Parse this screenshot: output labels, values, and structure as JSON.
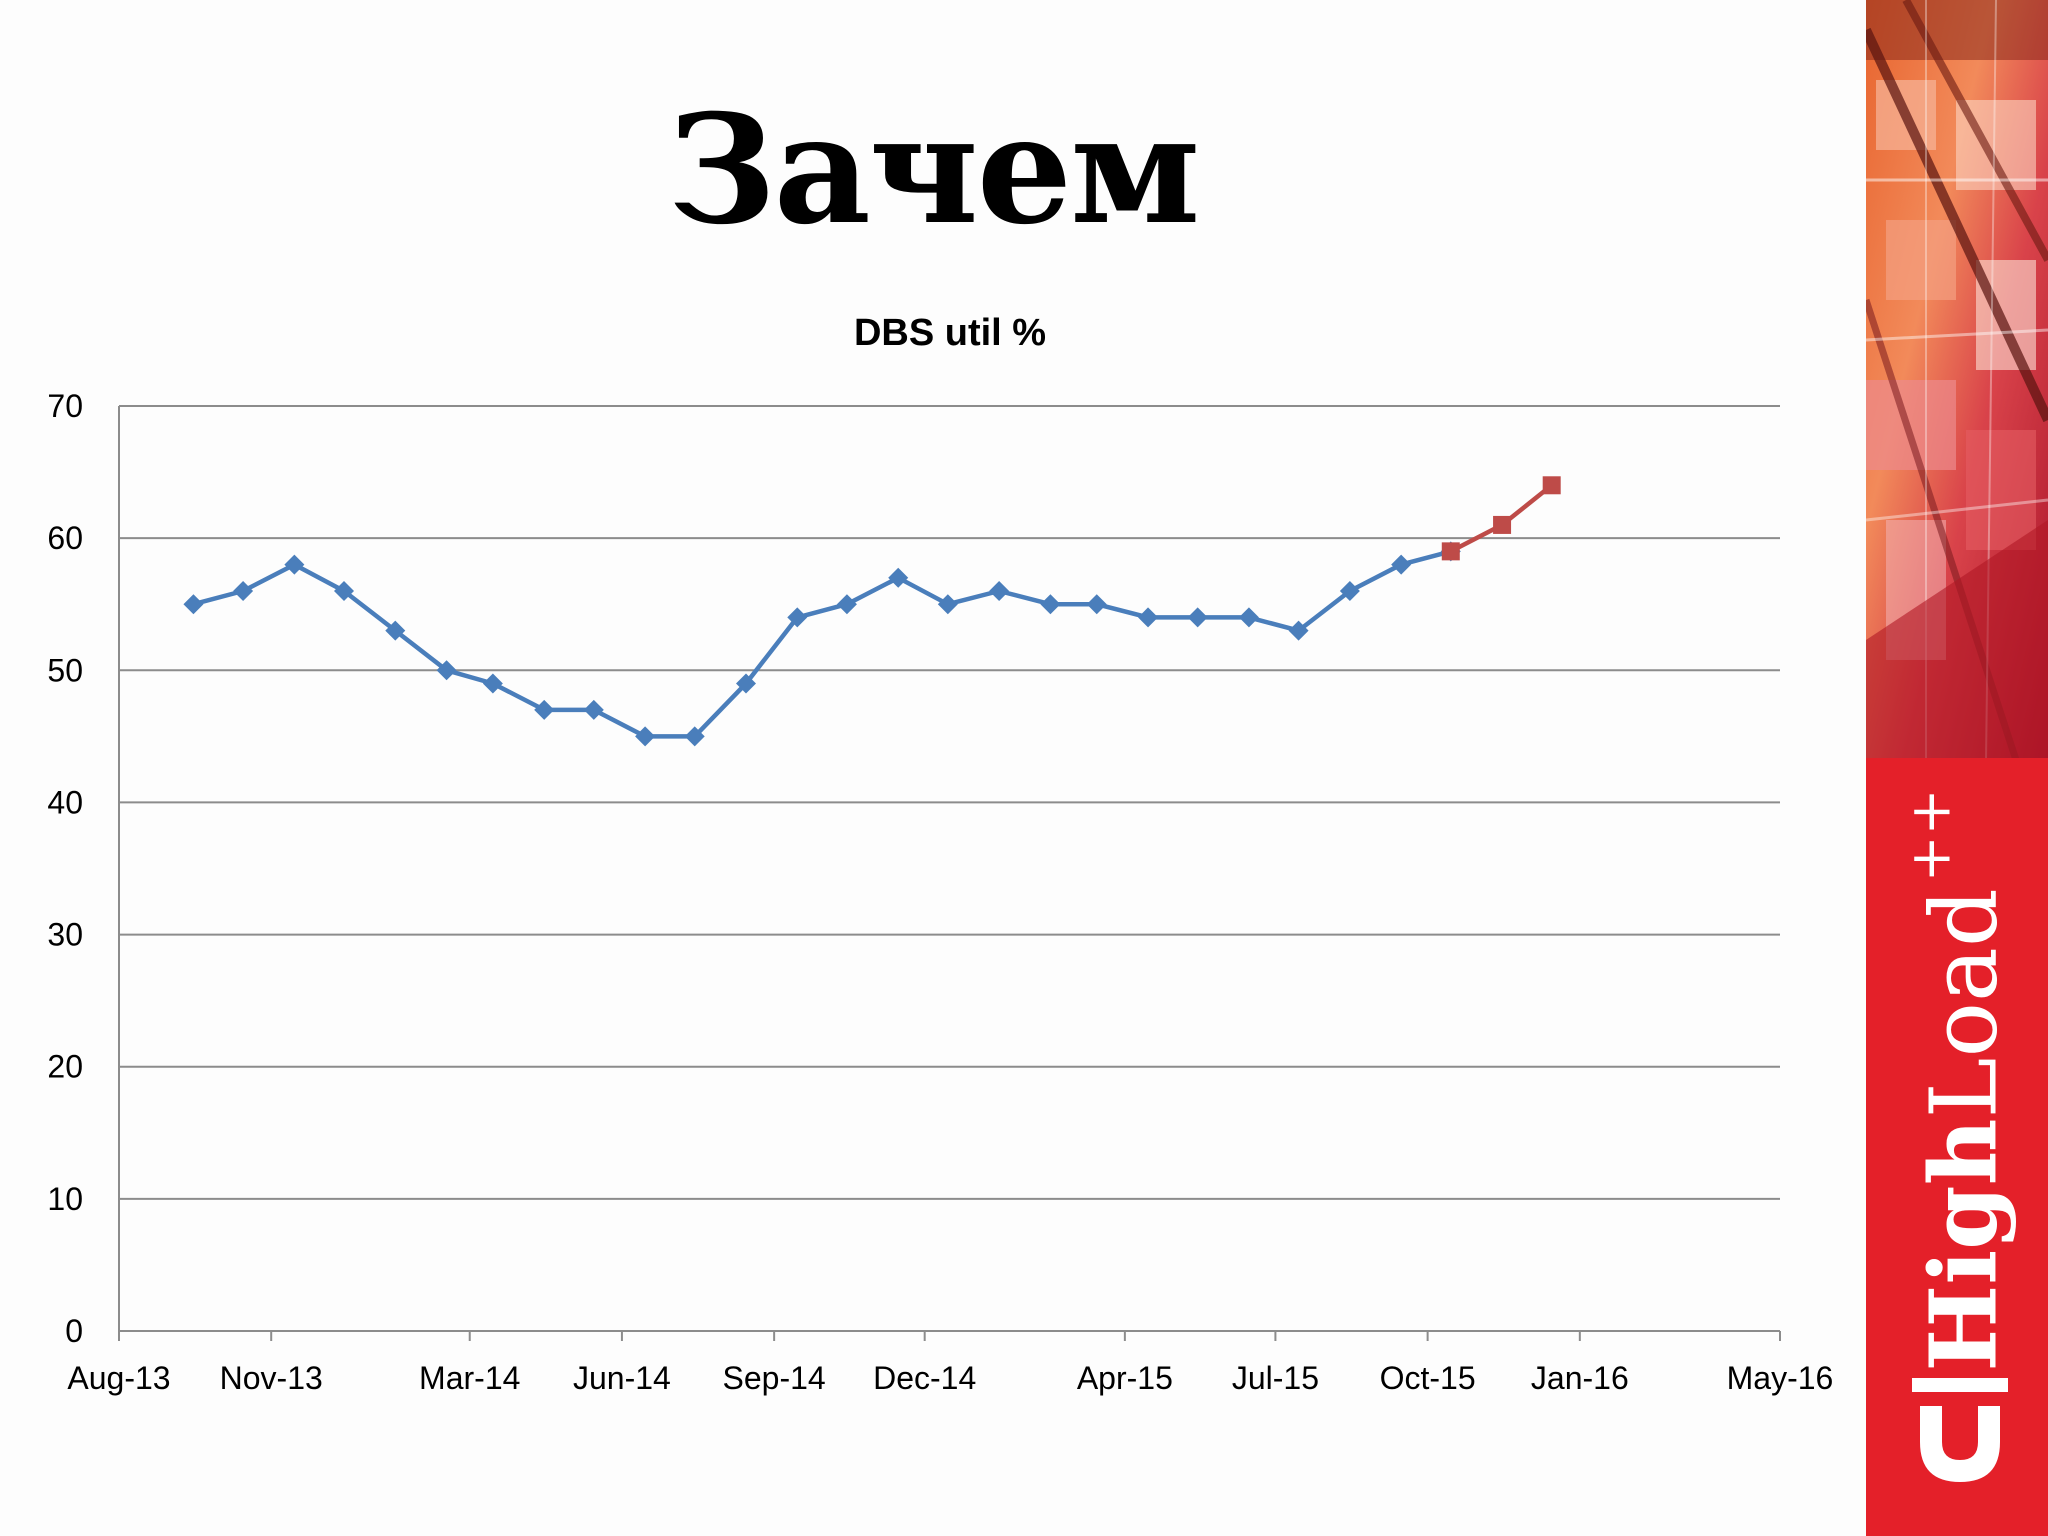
{
  "slide": {
    "title": "Зачем"
  },
  "banner": {
    "logo_strong": "High",
    "logo_light": "Load",
    "logo_suffix": "++"
  },
  "colors": {
    "series_actual": "#4a7ebb",
    "series_forecast": "#be4b48",
    "grid": "#8c8c8c",
    "banner_red": "#e42029"
  },
  "chart_data": {
    "type": "line",
    "title": "DBS util %",
    "xlabel": "",
    "ylabel": "",
    "ylim": [
      0,
      70
    ],
    "yticks": [
      0,
      10,
      20,
      30,
      40,
      50,
      60,
      70
    ],
    "xlim": [
      "2013-08-01",
      "2016-05-01"
    ],
    "xtick_labels": [
      "Aug-13",
      "Nov-13",
      "Mar-14",
      "Jun-14",
      "Sep-14",
      "Dec-14",
      "Apr-15",
      "Jul-15",
      "Oct-15",
      "Jan-16",
      "May-16"
    ],
    "xticks": [
      "2013-08-01",
      "2013-11-01",
      "2014-03-01",
      "2014-06-01",
      "2014-09-01",
      "2014-12-01",
      "2015-04-01",
      "2015-07-01",
      "2015-10-01",
      "2016-01-01",
      "2016-05-01"
    ],
    "grid": true,
    "legend": "none",
    "series": [
      {
        "marker": "diamond",
        "color": "#4a7ebb",
        "x": [
          "2013-09-15",
          "2013-10-15",
          "2013-11-15",
          "2013-12-15",
          "2014-01-15",
          "2014-02-15",
          "2014-03-15",
          "2014-04-15",
          "2014-05-15",
          "2014-06-15",
          "2014-07-15",
          "2014-08-15",
          "2014-09-15",
          "2014-10-15",
          "2014-11-15",
          "2014-12-15",
          "2015-01-15",
          "2015-02-15",
          "2015-03-15",
          "2015-04-15",
          "2015-05-15",
          "2015-06-15",
          "2015-07-15",
          "2015-08-15",
          "2015-09-15",
          "2015-10-15"
        ],
        "y": [
          55,
          56,
          58,
          56,
          53,
          50,
          49,
          47,
          47,
          45,
          45,
          49,
          54,
          55,
          57,
          55,
          56,
          55,
          55,
          54,
          54,
          54,
          53,
          56,
          58,
          59
        ]
      },
      {
        "marker": "square",
        "color": "#be4b48",
        "x": [
          "2015-10-15",
          "2015-11-15",
          "2015-12-15"
        ],
        "y": [
          59,
          61,
          64
        ]
      }
    ]
  }
}
